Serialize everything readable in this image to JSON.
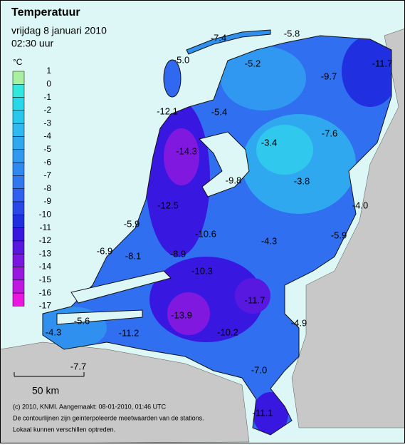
{
  "header": {
    "title": "Temperatuur",
    "date": "vrijdag 8 januari 2010",
    "time": "02:30 uur"
  },
  "legend": {
    "unit": "°C",
    "levels": [
      1,
      0,
      -1,
      -2,
      -3,
      -4,
      -5,
      -6,
      -7,
      -8,
      -9,
      -10,
      -11,
      -12,
      -13,
      -14,
      -15,
      -16,
      -17
    ],
    "colors": [
      "#a8f0a0",
      "#30e8e0",
      "#28d8e8",
      "#28c8ec",
      "#30b8f0",
      "#30a8f0",
      "#3098f0",
      "#3088f0",
      "#3078f0",
      "#3060f0",
      "#2848e8",
      "#2030e0",
      "#3818e0",
      "#5818e0",
      "#7818e0",
      "#9818e0",
      "#c018e0",
      "#e818e0"
    ]
  },
  "stations": [
    "-7.4",
    "-5.8",
    "-5.0",
    "-5.2",
    "-9.7",
    "-11.7",
    "-12.1",
    "-5.4",
    "-14.3",
    "-3.4",
    "-7.6",
    "-9.8",
    "-3.8",
    "-4.0",
    "-12.5",
    "-5.9",
    "-10.6",
    "-4.3",
    "-5.9",
    "-6.9",
    "-8.1",
    "-8.9",
    "-10.3",
    "-11.7",
    "-13.9",
    "-5.6",
    "-11.2",
    "-10.2",
    "-4.9",
    "-4.3",
    "-7.7",
    "-7.0",
    "-11.1"
  ],
  "scale": "50 km",
  "footer": [
    "(c) 2010, KNMI. Aangemaakt: 08-01-2010, 01:46 UTC",
    "De contourlijnen zijn geinterpoleerde meetwaarden van de stations.",
    "Lokaal kunnen verschillen optreden."
  ]
}
